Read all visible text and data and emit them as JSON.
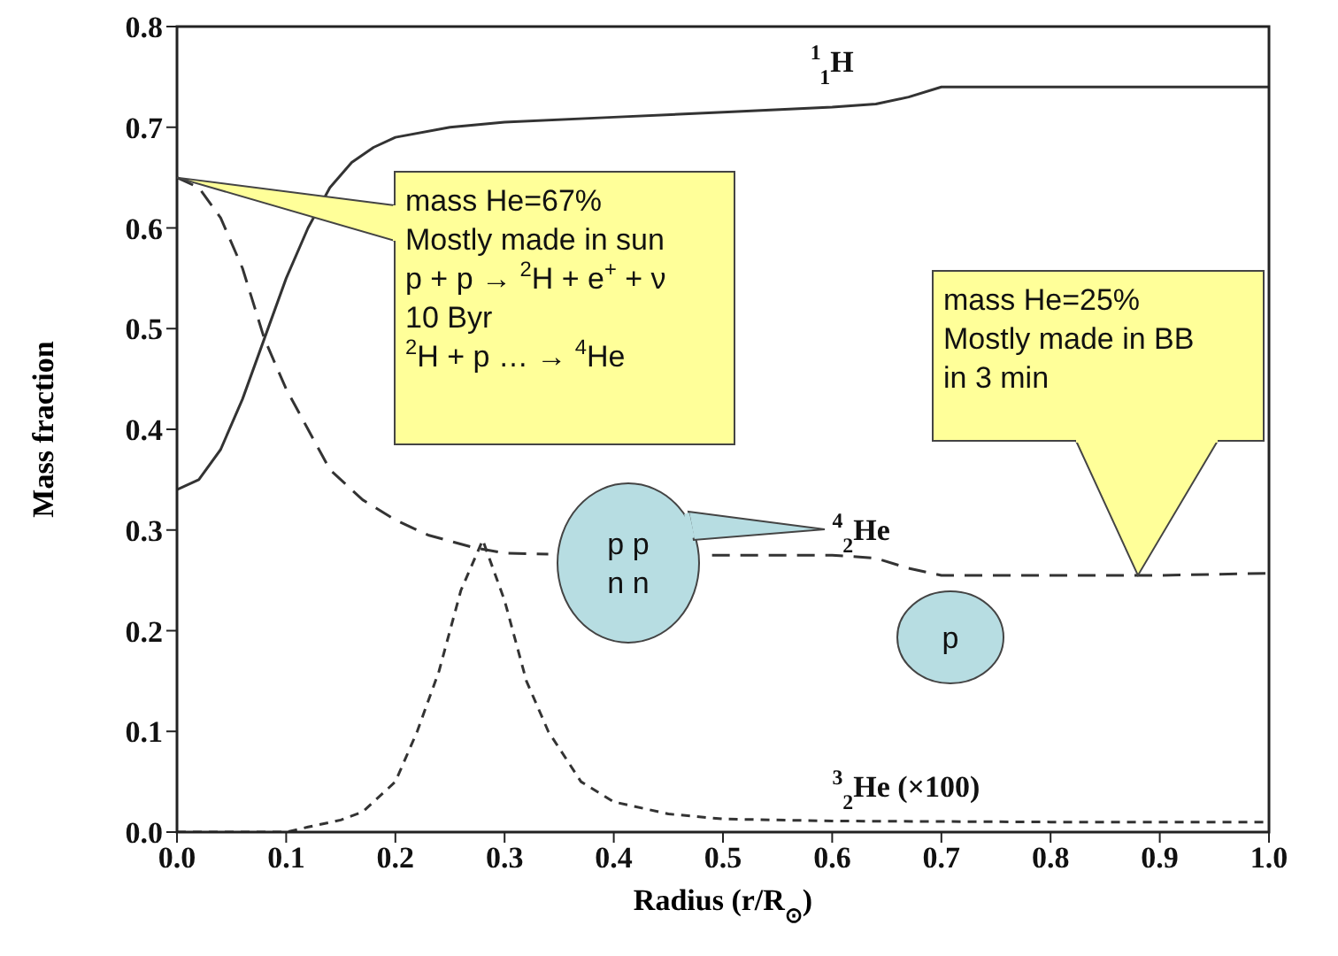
{
  "chart_data": {
    "type": "line",
    "xlabel": "Radius (r/R$_{⊙}$)",
    "ylabel": "Mass fraction",
    "xlim": [
      0,
      1
    ],
    "ylim": [
      0,
      0.8
    ],
    "xticks": [
      {
        "value": 0,
        "label": "0.0"
      },
      {
        "value": 0.1,
        "label": "0.1"
      },
      {
        "value": 0.2,
        "label": "0.2"
      },
      {
        "value": 0.3,
        "label": "0.3"
      },
      {
        "value": 0.4,
        "label": "0.4"
      },
      {
        "value": 0.5,
        "label": "0.5"
      },
      {
        "value": 0.6,
        "label": "0.6"
      },
      {
        "value": 0.7,
        "label": "0.7"
      },
      {
        "value": 0.8,
        "label": "0.8"
      },
      {
        "value": 0.9,
        "label": "0.9"
      },
      {
        "value": 1,
        "label": "1.0"
      }
    ],
    "yticks": [
      {
        "value": 0,
        "label": "0.0"
      },
      {
        "value": 0.1,
        "label": "0.1"
      },
      {
        "value": 0.2,
        "label": "0.2"
      },
      {
        "value": 0.3,
        "label": "0.3"
      },
      {
        "value": 0.4,
        "label": "0.4"
      },
      {
        "value": 0.5,
        "label": "0.5"
      },
      {
        "value": 0.6,
        "label": "0.6"
      },
      {
        "value": 0.7,
        "label": "0.7"
      },
      {
        "value": 0.8,
        "label": "0.8"
      }
    ],
    "marker": "none",
    "series": [
      {
        "name": "$^{1}$$_{1}$H",
        "color": "#333333",
        "line_style": "solid",
        "x": [
          0,
          0.02,
          0.04,
          0.06,
          0.08,
          0.1,
          0.12,
          0.14,
          0.16,
          0.18,
          0.2,
          0.25,
          0.3,
          0.4,
          0.5,
          0.6,
          0.64,
          0.67,
          0.7,
          0.8,
          0.9,
          1.0
        ],
        "values": [
          0.34,
          0.35,
          0.38,
          0.43,
          0.49,
          0.55,
          0.6,
          0.64,
          0.665,
          0.68,
          0.69,
          0.7,
          0.705,
          0.71,
          0.715,
          0.72,
          0.723,
          0.73,
          0.74,
          0.74,
          0.74,
          0.74
        ]
      },
      {
        "name": "$^{4}$$_{2}$He",
        "color": "#333333",
        "line_style": "dashed",
        "x": [
          0,
          0.02,
          0.04,
          0.06,
          0.08,
          0.1,
          0.12,
          0.14,
          0.17,
          0.2,
          0.23,
          0.27,
          0.3,
          0.34,
          0.4,
          0.49,
          0.55,
          0.6,
          0.64,
          0.67,
          0.7,
          0.8,
          0.9,
          1.0
        ],
        "values": [
          0.65,
          0.64,
          0.61,
          0.56,
          0.49,
          0.44,
          0.4,
          0.36,
          0.33,
          0.31,
          0.295,
          0.283,
          0.277,
          0.276,
          null,
          0.275,
          0.275,
          0.275,
          0.272,
          0.262,
          0.255,
          0.255,
          0.255,
          0.257
        ]
      },
      {
        "name": "$^{3}$$_{2}$He (×100)",
        "color": "#333333",
        "line_style": "dotted",
        "x": [
          0,
          0.1,
          0.12,
          0.15,
          0.17,
          0.2,
          0.22,
          0.24,
          0.26,
          0.28,
          0.3,
          0.32,
          0.34,
          0.37,
          0.4,
          0.45,
          0.5,
          0.6,
          0.8,
          1.0
        ],
        "values": [
          0,
          0,
          0.005,
          0.012,
          0.02,
          0.05,
          0.1,
          0.16,
          0.24,
          0.29,
          0.23,
          0.15,
          0.1,
          0.05,
          0.03,
          0.018,
          0.013,
          0.011,
          0.01,
          0.01
        ]
      }
    ],
    "annotations": [
      "mass He=67%\nMostly made in sun\np + p → $^{2}$H + e$^{+}$ + ν\n10 Byr\n$^{2}$H + p … → $^{4}$He",
      "mass He=25%\nMostly made in BB\nin 3 min",
      "p p\nn n",
      "p"
    ]
  }
}
